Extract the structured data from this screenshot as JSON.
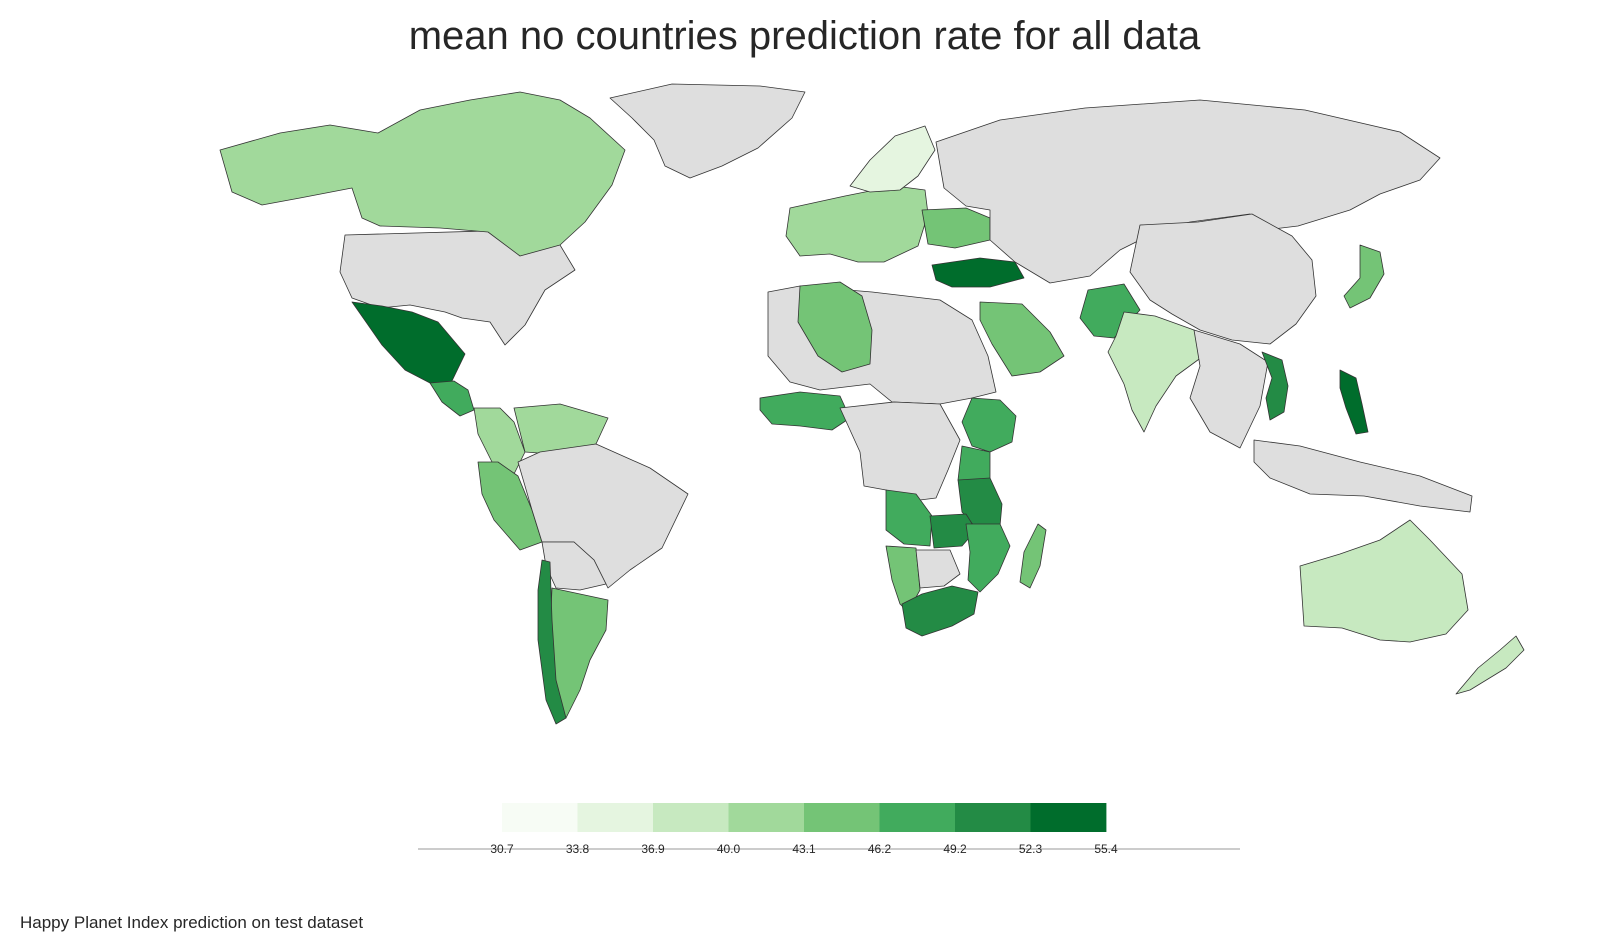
{
  "title": "mean no countries prediction rate for all data",
  "caption": "Happy Planet Index prediction on test dataset",
  "colors": {
    "no_data": "#dedede",
    "border": "#333333",
    "background": "#ffffff",
    "scale": [
      "#f7fcf5",
      "#e5f5e0",
      "#c7e9c0",
      "#a1d99b",
      "#74c476",
      "#41ab5d",
      "#238b45",
      "#006d2c"
    ]
  },
  "legend": {
    "ticks": [
      "30.7",
      "33.8",
      "36.9",
      "40.0",
      "43.1",
      "46.2",
      "49.2",
      "52.3",
      "55.4"
    ]
  },
  "regions": [
    {
      "name": "North America (no data)",
      "value": null
    },
    {
      "name": "Canada",
      "value": 41.0
    },
    {
      "name": "Greenland",
      "value": null
    },
    {
      "name": "Mexico",
      "value": 53.0
    },
    {
      "name": "Central America",
      "value": 47.0
    },
    {
      "name": "Colombia",
      "value": 42.0
    },
    {
      "name": "Venezuela / Guianas",
      "value": 42.0
    },
    {
      "name": "Peru",
      "value": 46.0
    },
    {
      "name": "Brazil",
      "value": null
    },
    {
      "name": "Bolivia / Paraguay",
      "value": null
    },
    {
      "name": "Argentina",
      "value": 45.0
    },
    {
      "name": "Chile",
      "value": 50.0
    },
    {
      "name": "Europe",
      "value": 41.0
    },
    {
      "name": "Nordic countries",
      "value": 35.0
    },
    {
      "name": "Ukraine / Belarus",
      "value": 45.0
    },
    {
      "name": "Turkey",
      "value": 54.0
    },
    {
      "name": "Russia and Central Asia",
      "value": null
    },
    {
      "name": "China / Mongolia",
      "value": null
    },
    {
      "name": "Japan",
      "value": 44.0
    },
    {
      "name": "Saudi Arabia",
      "value": 45.0
    },
    {
      "name": "Pakistan",
      "value": 49.0
    },
    {
      "name": "India",
      "value": 38.0
    },
    {
      "name": "Southeast Asia (no data)",
      "value": null
    },
    {
      "name": "Vietnam",
      "value": 50.0
    },
    {
      "name": "Philippines",
      "value": 53.0
    },
    {
      "name": "Indonesia / Papua",
      "value": null
    },
    {
      "name": "North Africa (no data)",
      "value": null
    },
    {
      "name": "Algeria",
      "value": 45.0
    },
    {
      "name": "West Africa",
      "value": 48.0
    },
    {
      "name": "Central Africa (no data)",
      "value": null
    },
    {
      "name": "Ethiopia",
      "value": 48.0
    },
    {
      "name": "Kenya",
      "value": 48.0
    },
    {
      "name": "Tanzania",
      "value": 52.0
    },
    {
      "name": "Angola",
      "value": 49.0
    },
    {
      "name": "Zambia",
      "value": 50.0
    },
    {
      "name": "Mozambique",
      "value": 49.0
    },
    {
      "name": "Namibia",
      "value": 45.0
    },
    {
      "name": "Botswana",
      "value": null
    },
    {
      "name": "South Africa",
      "value": 52.0
    },
    {
      "name": "Madagascar",
      "value": 46.0
    },
    {
      "name": "Australia",
      "value": 38.0
    },
    {
      "name": "New Zealand",
      "value": 38.0
    }
  ]
}
